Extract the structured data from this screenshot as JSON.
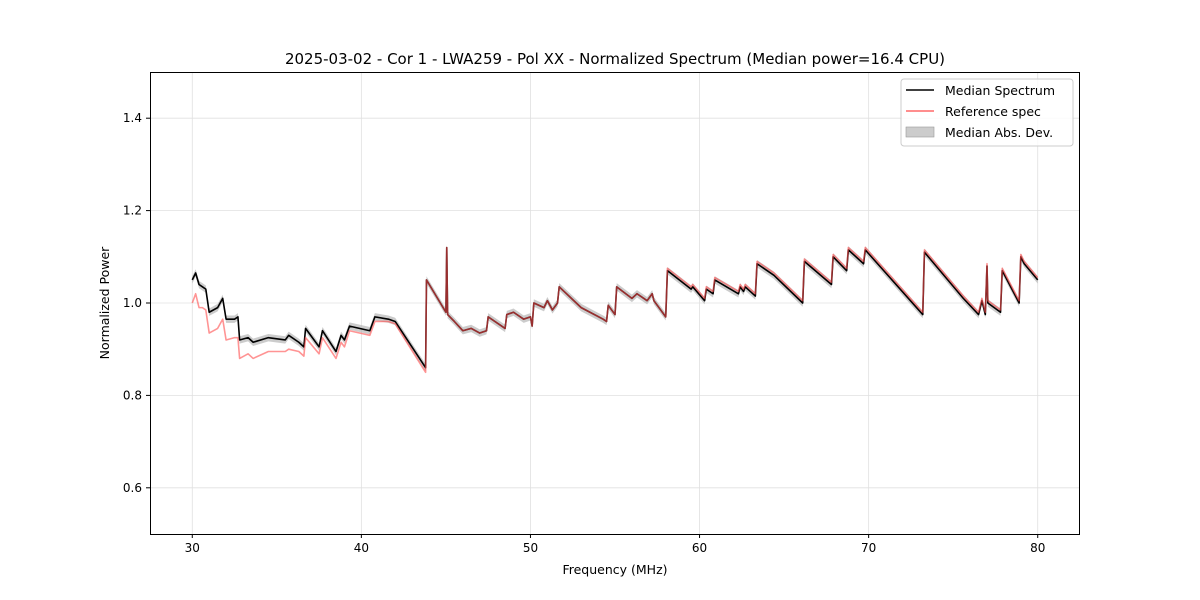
{
  "chart_data": {
    "type": "line",
    "title": "2025-03-02 - Cor 1 - LWA259 - Pol XX - Normalized Spectrum (Median power=16.4 CPU)",
    "xlabel": "Frequency (MHz)",
    "ylabel": "Normalized Power",
    "xlim": [
      27.5,
      82.5
    ],
    "ylim": [
      0.5,
      1.5
    ],
    "xticks": [
      30,
      40,
      50,
      60,
      70,
      80
    ],
    "xtick_labels": [
      "30",
      "40",
      "50",
      "60",
      "70",
      "80"
    ],
    "yticks": [
      0.6,
      0.8,
      1.0,
      1.2,
      1.4
    ],
    "ytick_labels": [
      "0.6",
      "0.8",
      "1.0",
      "1.2",
      "1.4"
    ],
    "grid": true,
    "legend_position": "top-right",
    "legend": [
      "Median Spectrum",
      "Reference spec",
      "Median Abs. Dev."
    ],
    "colors": {
      "median": "#000000",
      "reference": "#ff4d4d",
      "mad": "#b0b0b0"
    },
    "mad_typical": 0.008,
    "x": [
      30.0,
      30.2,
      30.4,
      30.6,
      30.8,
      31.0,
      31.5,
      31.8,
      32.0,
      32.5,
      32.7,
      32.8,
      33.3,
      33.6,
      34.5,
      35.5,
      35.7,
      36.3,
      36.6,
      36.7,
      37.5,
      37.7,
      38.5,
      38.8,
      39.0,
      39.3,
      40.5,
      40.8,
      41.6,
      42.0,
      43.8,
      43.85,
      45.0,
      45.05,
      45.1,
      45.5,
      46.0,
      46.5,
      47.0,
      47.4,
      47.5,
      48.5,
      48.6,
      49.0,
      49.6,
      50.0,
      50.1,
      50.2,
      50.8,
      51.0,
      51.3,
      51.6,
      51.7,
      53.0,
      54.3,
      54.5,
      54.6,
      55.0,
      55.1,
      56.0,
      56.3,
      56.9,
      57.2,
      57.3,
      58.0,
      58.1,
      59.5,
      59.6,
      60.3,
      60.4,
      60.8,
      60.9,
      62.3,
      62.4,
      62.6,
      62.7,
      63.3,
      63.4,
      64.4,
      66.1,
      66.2,
      67.8,
      67.9,
      68.7,
      68.8,
      69.7,
      69.8,
      71.5,
      73.2,
      73.3,
      75.6,
      76.5,
      76.7,
      76.9,
      77.0,
      77.05,
      77.8,
      77.9,
      78.9,
      79.0,
      79.2,
      80.0
    ],
    "series": [
      {
        "name": "Median Spectrum",
        "values": [
          1.05,
          1.065,
          1.04,
          1.035,
          1.03,
          0.98,
          0.99,
          1.01,
          0.965,
          0.965,
          0.97,
          0.92,
          0.925,
          0.915,
          0.925,
          0.92,
          0.93,
          0.915,
          0.905,
          0.945,
          0.905,
          0.94,
          0.895,
          0.93,
          0.92,
          0.95,
          0.94,
          0.97,
          0.965,
          0.96,
          0.86,
          1.05,
          0.98,
          1.12,
          0.975,
          0.96,
          0.94,
          0.945,
          0.935,
          0.94,
          0.97,
          0.945,
          0.975,
          0.98,
          0.965,
          0.97,
          0.95,
          1.0,
          0.99,
          1.005,
          0.985,
          1.0,
          1.035,
          0.99,
          0.965,
          0.96,
          0.995,
          0.975,
          1.035,
          1.01,
          1.02,
          1.005,
          1.02,
          1.005,
          0.97,
          1.07,
          1.03,
          1.035,
          1.005,
          1.03,
          1.02,
          1.05,
          1.02,
          1.035,
          1.025,
          1.035,
          1.015,
          1.085,
          1.06,
          1.0,
          1.09,
          1.04,
          1.1,
          1.07,
          1.115,
          1.085,
          1.115,
          1.045,
          0.975,
          1.11,
          1.01,
          0.975,
          1.005,
          0.975,
          1.08,
          1.0,
          0.98,
          1.07,
          1.0,
          1.1,
          1.085,
          1.05
        ]
      },
      {
        "name": "Reference spec",
        "values": [
          1.0,
          1.02,
          0.99,
          0.99,
          0.985,
          0.935,
          0.945,
          0.965,
          0.92,
          0.925,
          0.925,
          0.88,
          0.89,
          0.88,
          0.895,
          0.895,
          0.9,
          0.895,
          0.885,
          0.925,
          0.89,
          0.925,
          0.88,
          0.915,
          0.905,
          0.94,
          0.93,
          0.96,
          0.96,
          0.955,
          0.85,
          1.05,
          0.98,
          1.12,
          0.975,
          0.96,
          0.94,
          0.945,
          0.935,
          0.94,
          0.97,
          0.945,
          0.975,
          0.98,
          0.965,
          0.97,
          0.95,
          1.0,
          0.99,
          1.005,
          0.985,
          1.0,
          1.035,
          0.99,
          0.965,
          0.96,
          0.995,
          0.975,
          1.035,
          1.01,
          1.02,
          1.005,
          1.02,
          1.005,
          0.97,
          1.075,
          1.035,
          1.04,
          1.01,
          1.035,
          1.025,
          1.055,
          1.025,
          1.04,
          1.03,
          1.04,
          1.02,
          1.09,
          1.065,
          1.005,
          1.095,
          1.045,
          1.105,
          1.075,
          1.12,
          1.09,
          1.12,
          1.05,
          0.98,
          1.115,
          1.015,
          0.98,
          1.01,
          0.98,
          1.085,
          1.005,
          0.985,
          1.075,
          1.005,
          1.105,
          1.09,
          1.055
        ]
      }
    ]
  }
}
